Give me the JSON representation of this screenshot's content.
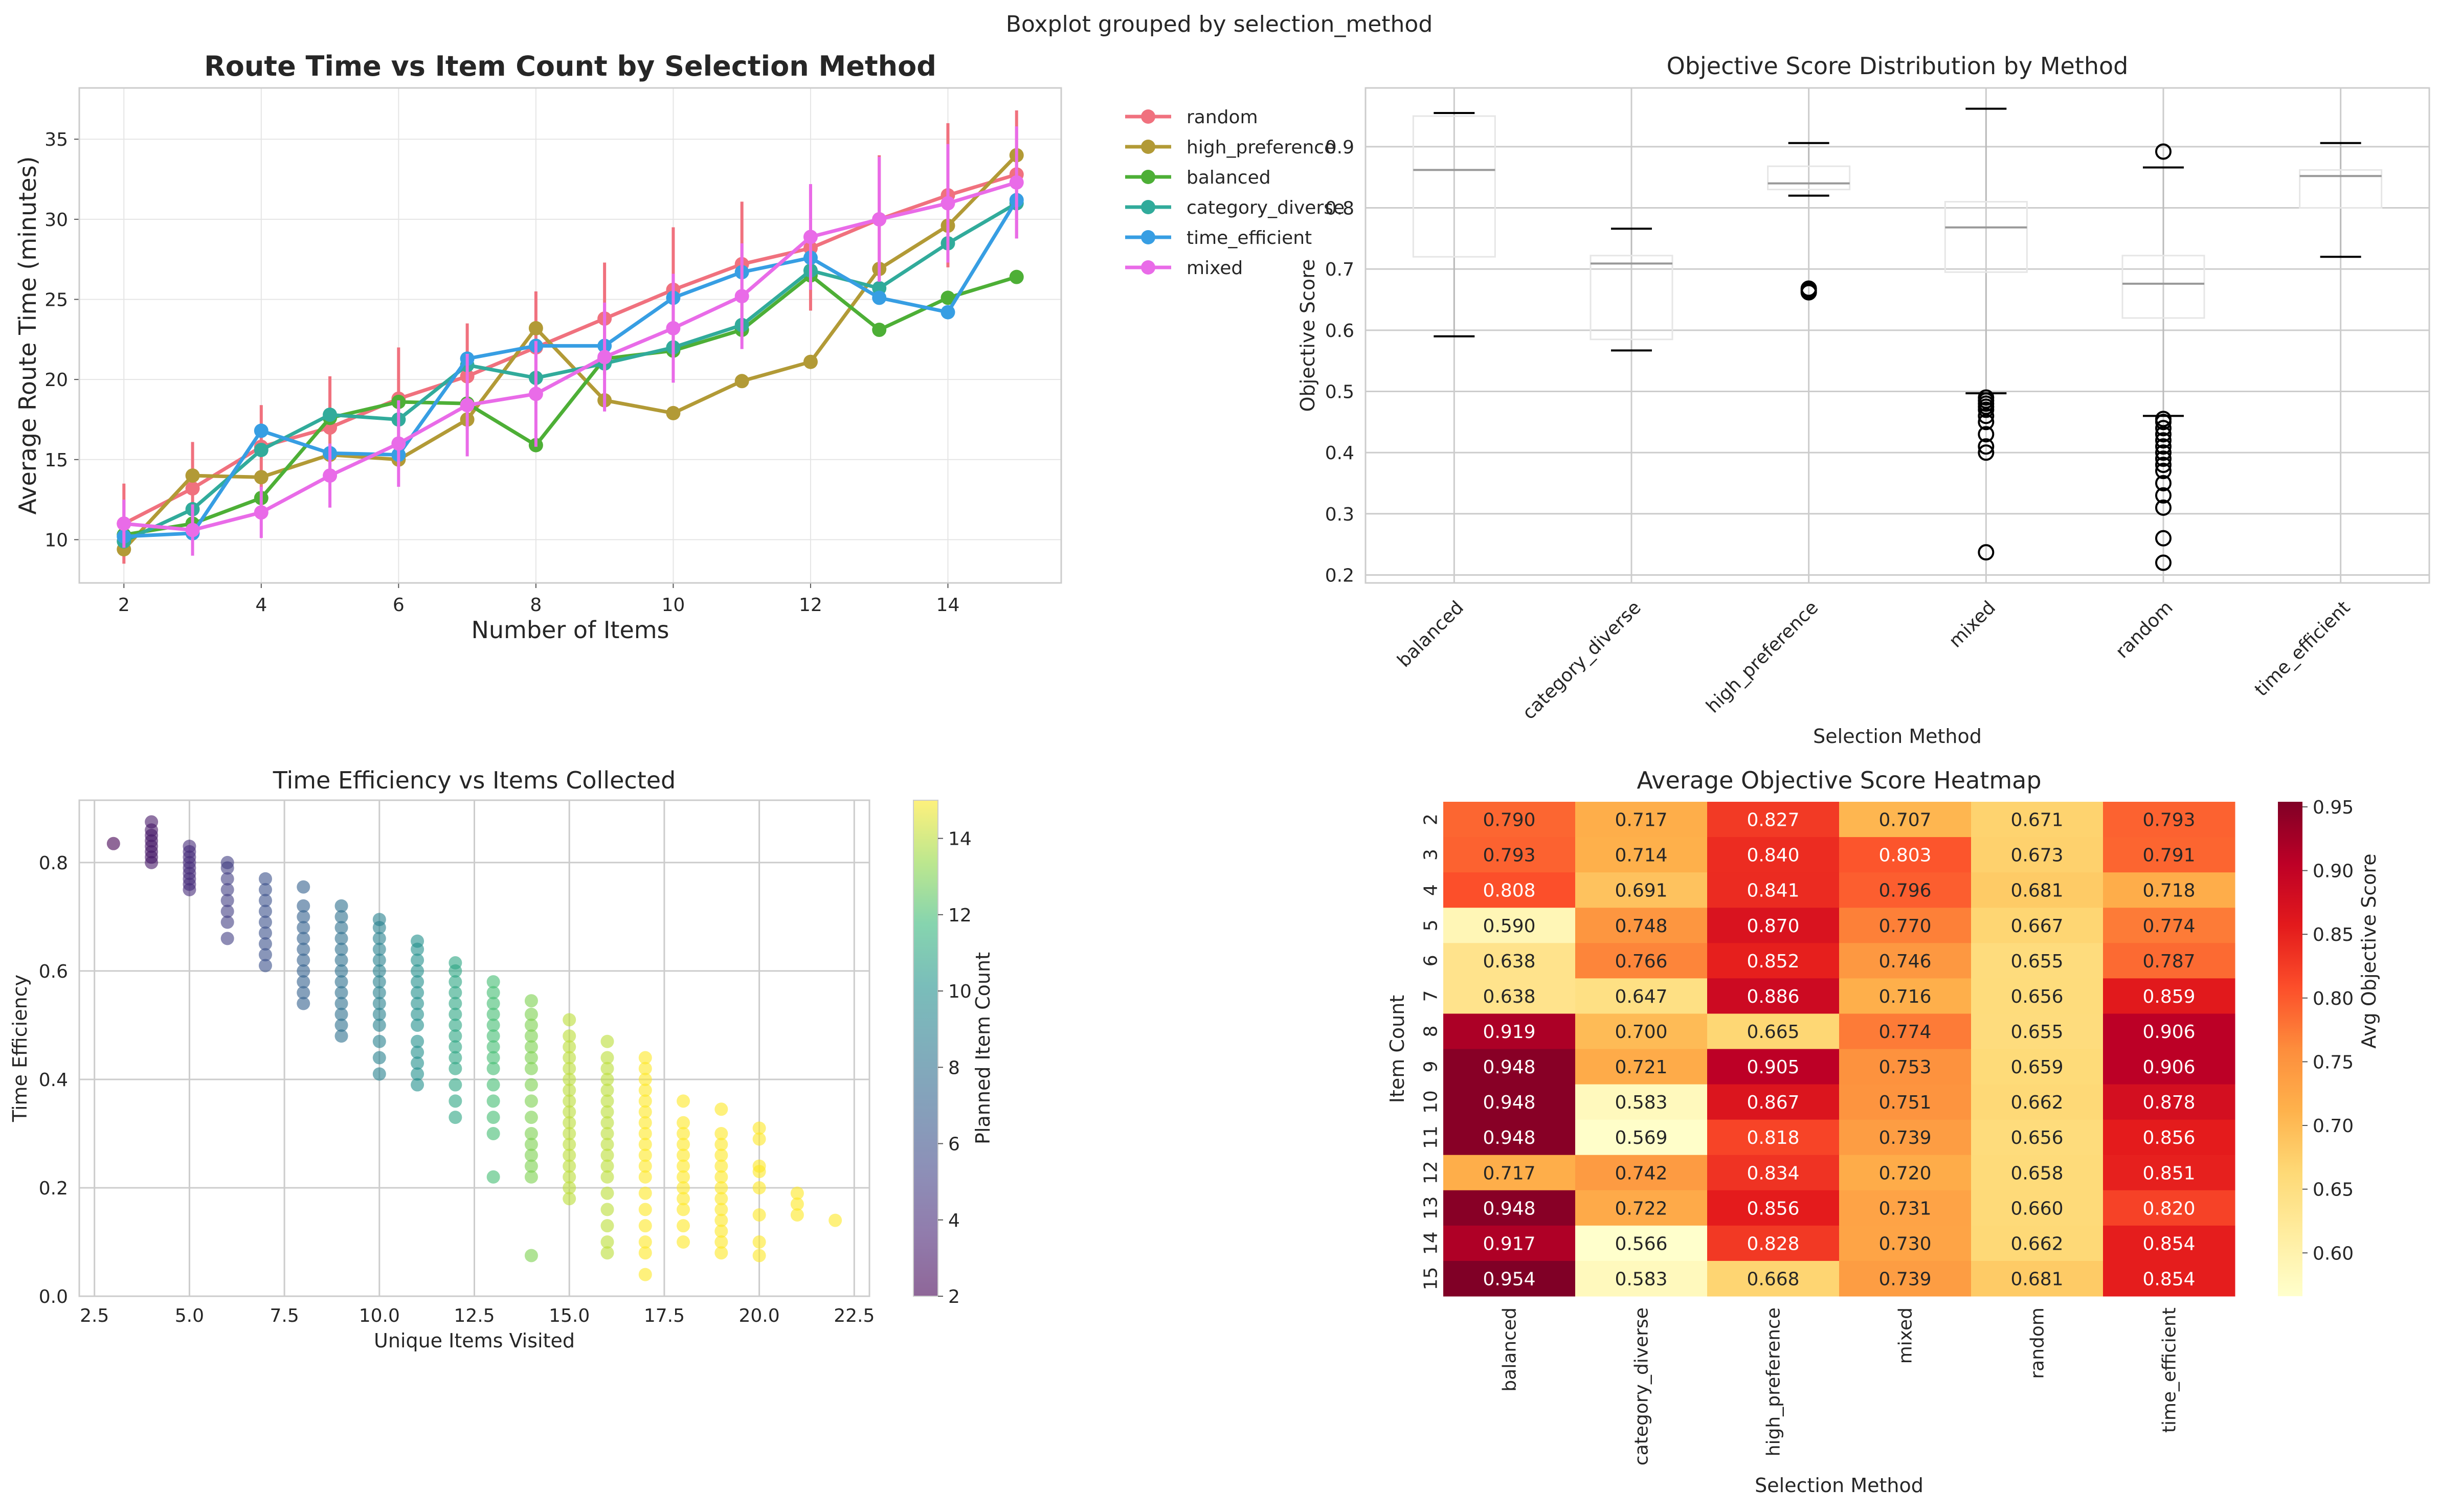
{
  "suptitle": "Boxplot grouped by selection_method",
  "colors": {
    "random": "#f0717e",
    "high_preference": "#b29a36",
    "balanced": "#4daf36",
    "category_diverse": "#31ab9b",
    "time_efficient": "#379ee3",
    "mixed": "#e96be8",
    "grid": "#e5e5e5",
    "frame": "#cccccc"
  },
  "chart_data": [
    {
      "id": "line",
      "type": "line",
      "title": "Route Time vs Item Count by Selection Method",
      "xlabel": "Number of Items",
      "ylabel": "Average Route Time (minutes)",
      "xlim": [
        1.35,
        15.65
      ],
      "ylim": [
        7.3,
        38.2
      ],
      "xticks": [
        "2",
        "4",
        "6",
        "8",
        "10",
        "12",
        "14"
      ],
      "yticks": [
        "10",
        "15",
        "20",
        "25",
        "30",
        "35"
      ],
      "legend_position": "outside-right",
      "x": [
        2,
        3,
        4,
        5,
        6,
        7,
        8,
        9,
        10,
        11,
        12,
        13,
        14,
        15
      ],
      "series": [
        {
          "name": "random",
          "values": [
            11.0,
            13.2,
            15.8,
            17.0,
            18.8,
            20.2,
            22.0,
            23.8,
            25.6,
            27.2,
            28.2,
            30.0,
            31.5,
            32.8
          ],
          "err": [
            2.5,
            2.9,
            2.6,
            3.2,
            3.2,
            3.3,
            3.5,
            3.5,
            3.9,
            3.9,
            3.9,
            4.0,
            4.5,
            4.0
          ]
        },
        {
          "name": "high_preference",
          "values": [
            9.4,
            14.0,
            13.9,
            15.3,
            15.0,
            17.5,
            23.2,
            18.7,
            17.9,
            19.9,
            21.1,
            26.9,
            29.6,
            34.0
          ],
          "err": []
        },
        {
          "name": "balanced",
          "values": [
            10.3,
            11.0,
            12.6,
            17.6,
            18.6,
            18.5,
            15.9,
            21.3,
            21.8,
            23.1,
            26.5,
            23.1,
            25.1,
            26.4
          ],
          "err": []
        },
        {
          "name": "category_diverse",
          "values": [
            9.9,
            11.9,
            15.6,
            17.8,
            17.5,
            20.9,
            20.1,
            21.0,
            22.0,
            23.4,
            26.8,
            25.7,
            28.5,
            31.0
          ],
          "err": []
        },
        {
          "name": "time_efficient",
          "values": [
            10.2,
            10.4,
            16.8,
            15.4,
            15.3,
            21.3,
            22.1,
            22.1,
            25.1,
            26.7,
            27.6,
            25.1,
            24.2,
            31.2
          ],
          "err": []
        },
        {
          "name": "mixed",
          "values": [
            11.0,
            10.6,
            11.7,
            14.0,
            16.0,
            18.4,
            19.1,
            21.4,
            23.2,
            25.2,
            28.9,
            30.0,
            31.0,
            32.3
          ],
          "err": [
            1.5,
            1.6,
            1.6,
            2.0,
            2.7,
            3.2,
            3.3,
            3.4,
            3.4,
            3.3,
            3.3,
            3.9,
            3.7,
            3.5
          ]
        }
      ]
    },
    {
      "id": "box",
      "type": "box",
      "title": "Objective Score Distribution by Method",
      "xlabel": "Selection Method",
      "ylabel": "Objective Score",
      "ylim": [
        0.187,
        0.996
      ],
      "yticks": [
        "0.2",
        "0.3",
        "0.4",
        "0.5",
        "0.6",
        "0.7",
        "0.8",
        "0.9"
      ],
      "categories": [
        "balanced",
        "category_diverse",
        "high_preference",
        "mixed",
        "random",
        "time_efficient"
      ],
      "boxes": [
        {
          "whislo": 0.59,
          "q1": 0.72,
          "med": 0.862,
          "q3": 0.95,
          "whishi": 0.955,
          "fliers": []
        },
        {
          "whislo": 0.567,
          "q1": 0.585,
          "med": 0.709,
          "q3": 0.722,
          "whishi": 0.766,
          "fliers": []
        },
        {
          "whislo": 0.82,
          "q1": 0.83,
          "med": 0.84,
          "q3": 0.868,
          "whishi": 0.906,
          "fliers": [
            0.662,
            0.665,
            0.668
          ]
        },
        {
          "whislo": 0.497,
          "q1": 0.695,
          "med": 0.768,
          "q3": 0.81,
          "whishi": 0.962,
          "fliers": [
            0.49,
            0.485,
            0.48,
            0.475,
            0.47,
            0.46,
            0.45,
            0.43,
            0.41,
            0.4,
            0.237
          ]
        },
        {
          "whislo": 0.46,
          "q1": 0.62,
          "med": 0.676,
          "q3": 0.722,
          "whishi": 0.866,
          "fliers": [
            0.892,
            0.455,
            0.45,
            0.44,
            0.43,
            0.42,
            0.41,
            0.4,
            0.39,
            0.38,
            0.37,
            0.35,
            0.33,
            0.31,
            0.26,
            0.22
          ]
        },
        {
          "whislo": 0.72,
          "q1": 0.8,
          "med": 0.852,
          "q3": 0.862,
          "whishi": 0.906,
          "fliers": []
        }
      ]
    },
    {
      "id": "scatter",
      "type": "scatter",
      "title": "Time Efficiency vs Items Collected",
      "xlabel": "Unique Items Visited",
      "ylabel": "Time Efficiency",
      "xlim": [
        2.1,
        22.9
      ],
      "ylim": [
        0.0,
        0.915
      ],
      "xticks": [
        "2.5",
        "5.0",
        "7.5",
        "10.0",
        "12.5",
        "15.0",
        "17.5",
        "20.0",
        "22.5"
      ],
      "yticks": [
        "0.0",
        "0.2",
        "0.4",
        "0.6",
        "0.8"
      ],
      "colorbar_label": "Planned Item Count",
      "colorbar_range": [
        2,
        15
      ],
      "colorbar_ticks": [
        "2",
        "4",
        "6",
        "8",
        "10",
        "12",
        "14"
      ],
      "columns": [
        {
          "x": 3,
          "c": 2,
          "vals": [
            0.835
          ]
        },
        {
          "x": 4,
          "c": 3,
          "vals": [
            0.8,
            0.81,
            0.82,
            0.83,
            0.84,
            0.85,
            0.86,
            0.875
          ]
        },
        {
          "x": 5,
          "c": 4,
          "vals": [
            0.75,
            0.76,
            0.77,
            0.78,
            0.79,
            0.8,
            0.81,
            0.82,
            0.83
          ]
        },
        {
          "x": 6,
          "c": 5,
          "vals": [
            0.66,
            0.69,
            0.71,
            0.73,
            0.75,
            0.77,
            0.79,
            0.8
          ]
        },
        {
          "x": 7,
          "c": 6,
          "vals": [
            0.61,
            0.63,
            0.65,
            0.67,
            0.69,
            0.71,
            0.73,
            0.75,
            0.77
          ]
        },
        {
          "x": 8,
          "c": 7,
          "vals": [
            0.54,
            0.56,
            0.58,
            0.6,
            0.62,
            0.64,
            0.66,
            0.68,
            0.7,
            0.72,
            0.755
          ]
        },
        {
          "x": 9,
          "c": 8,
          "vals": [
            0.48,
            0.5,
            0.52,
            0.54,
            0.56,
            0.58,
            0.6,
            0.62,
            0.64,
            0.66,
            0.68,
            0.7,
            0.72
          ]
        },
        {
          "x": 10,
          "c": 9,
          "vals": [
            0.41,
            0.44,
            0.47,
            0.5,
            0.52,
            0.54,
            0.56,
            0.58,
            0.6,
            0.62,
            0.64,
            0.66,
            0.68,
            0.695
          ]
        },
        {
          "x": 11,
          "c": 10,
          "vals": [
            0.39,
            0.41,
            0.43,
            0.45,
            0.47,
            0.5,
            0.52,
            0.54,
            0.56,
            0.58,
            0.6,
            0.62,
            0.64,
            0.655
          ]
        },
        {
          "x": 12,
          "c": 11,
          "vals": [
            0.33,
            0.36,
            0.39,
            0.42,
            0.44,
            0.46,
            0.48,
            0.5,
            0.52,
            0.54,
            0.56,
            0.58,
            0.6,
            0.615
          ]
        },
        {
          "x": 13,
          "c": 12,
          "vals": [
            0.22,
            0.3,
            0.33,
            0.36,
            0.39,
            0.42,
            0.44,
            0.46,
            0.48,
            0.5,
            0.52,
            0.54,
            0.56,
            0.58
          ]
        },
        {
          "x": 14,
          "c": 13,
          "vals": [
            0.075,
            0.22,
            0.24,
            0.26,
            0.28,
            0.3,
            0.33,
            0.36,
            0.39,
            0.42,
            0.44,
            0.46,
            0.48,
            0.5,
            0.52,
            0.545
          ]
        },
        {
          "x": 15,
          "c": 14,
          "vals": [
            0.18,
            0.2,
            0.22,
            0.24,
            0.26,
            0.28,
            0.3,
            0.32,
            0.34,
            0.36,
            0.38,
            0.4,
            0.42,
            0.44,
            0.46,
            0.48,
            0.51
          ]
        },
        {
          "x": 16,
          "c": 14,
          "vals": [
            0.08,
            0.1,
            0.13,
            0.16,
            0.19,
            0.22,
            0.24,
            0.26,
            0.28,
            0.3,
            0.32,
            0.34,
            0.36,
            0.38,
            0.4,
            0.42,
            0.44,
            0.47
          ]
        },
        {
          "x": 17,
          "c": 15,
          "vals": [
            0.04,
            0.08,
            0.1,
            0.13,
            0.16,
            0.19,
            0.22,
            0.24,
            0.26,
            0.28,
            0.3,
            0.32,
            0.34,
            0.36,
            0.38,
            0.4,
            0.42,
            0.44
          ]
        },
        {
          "x": 18,
          "c": 15,
          "vals": [
            0.1,
            0.13,
            0.16,
            0.18,
            0.2,
            0.22,
            0.24,
            0.26,
            0.28,
            0.3,
            0.32,
            0.36
          ]
        },
        {
          "x": 19,
          "c": 15,
          "vals": [
            0.08,
            0.1,
            0.12,
            0.14,
            0.16,
            0.18,
            0.2,
            0.22,
            0.24,
            0.26,
            0.28,
            0.3,
            0.345
          ]
        },
        {
          "x": 20,
          "c": 15,
          "vals": [
            0.075,
            0.1,
            0.15,
            0.2,
            0.23,
            0.24,
            0.29,
            0.31
          ]
        },
        {
          "x": 21,
          "c": 15,
          "vals": [
            0.15,
            0.17,
            0.19
          ]
        },
        {
          "x": 22,
          "c": 15,
          "vals": [
            0.14
          ]
        }
      ]
    },
    {
      "id": "heatmap",
      "type": "heatmap",
      "title": "Average Objective Score Heatmap",
      "xlabel": "Selection Method",
      "ylabel": "Item Count",
      "columns": [
        "balanced",
        "category_diverse",
        "high_preference",
        "mixed",
        "random",
        "time_efficient"
      ],
      "rows": [
        "2",
        "3",
        "4",
        "5",
        "6",
        "7",
        "8",
        "9",
        "10",
        "11",
        "12",
        "13",
        "14",
        "15"
      ],
      "values": [
        [
          0.79,
          0.717,
          0.827,
          0.707,
          0.671,
          0.793
        ],
        [
          0.793,
          0.714,
          0.84,
          0.803,
          0.673,
          0.791
        ],
        [
          0.808,
          0.691,
          0.841,
          0.796,
          0.681,
          0.718
        ],
        [
          0.59,
          0.748,
          0.87,
          0.77,
          0.667,
          0.774
        ],
        [
          0.638,
          0.766,
          0.852,
          0.746,
          0.655,
          0.787
        ],
        [
          0.638,
          0.647,
          0.886,
          0.716,
          0.656,
          0.859
        ],
        [
          0.919,
          0.7,
          0.665,
          0.774,
          0.655,
          0.906
        ],
        [
          0.948,
          0.721,
          0.905,
          0.753,
          0.659,
          0.906
        ],
        [
          0.948,
          0.583,
          0.867,
          0.751,
          0.662,
          0.878
        ],
        [
          0.948,
          0.569,
          0.818,
          0.739,
          0.656,
          0.856
        ],
        [
          0.717,
          0.742,
          0.834,
          0.72,
          0.658,
          0.851
        ],
        [
          0.948,
          0.722,
          0.856,
          0.731,
          0.66,
          0.82
        ],
        [
          0.917,
          0.566,
          0.828,
          0.73,
          0.662,
          0.854
        ],
        [
          0.954,
          0.583,
          0.668,
          0.739,
          0.681,
          0.854
        ]
      ],
      "value_labels": [
        [
          "0.790",
          "0.717",
          "0.827",
          "0.707",
          "0.671",
          "0.793"
        ],
        [
          "0.793",
          "0.714",
          "0.840",
          "0.803",
          "0.673",
          "0.791"
        ],
        [
          "0.808",
          "0.691",
          "0.841",
          "0.796",
          "0.681",
          "0.718"
        ],
        [
          "0.590",
          "0.748",
          "0.870",
          "0.770",
          "0.667",
          "0.774"
        ],
        [
          "0.638",
          "0.766",
          "0.852",
          "0.746",
          "0.655",
          "0.787"
        ],
        [
          "0.638",
          "0.647",
          "0.886",
          "0.716",
          "0.656",
          "0.859"
        ],
        [
          "0.919",
          "0.700",
          "0.665",
          "0.774",
          "0.655",
          "0.906"
        ],
        [
          "0.948",
          "0.721",
          "0.905",
          "0.753",
          "0.659",
          "0.906"
        ],
        [
          "0.948",
          "0.583",
          "0.867",
          "0.751",
          "0.662",
          "0.878"
        ],
        [
          "0.948",
          "0.569",
          "0.818",
          "0.739",
          "0.656",
          "0.856"
        ],
        [
          "0.717",
          "0.742",
          "0.834",
          "0.720",
          "0.658",
          "0.851"
        ],
        [
          "0.948",
          "0.722",
          "0.856",
          "0.731",
          "0.660",
          "0.820"
        ],
        [
          "0.917",
          "0.566",
          "0.828",
          "0.730",
          "0.662",
          "0.854"
        ],
        [
          "0.954",
          "0.583",
          "0.668",
          "0.739",
          "0.681",
          "0.854"
        ]
      ],
      "colorbar_label": "Avg Objective Score",
      "colorbar_range": [
        0.566,
        0.954
      ],
      "colorbar_ticks": [
        "0.60",
        "0.65",
        "0.70",
        "0.75",
        "0.80",
        "0.85",
        "0.90",
        "0.95"
      ]
    }
  ]
}
